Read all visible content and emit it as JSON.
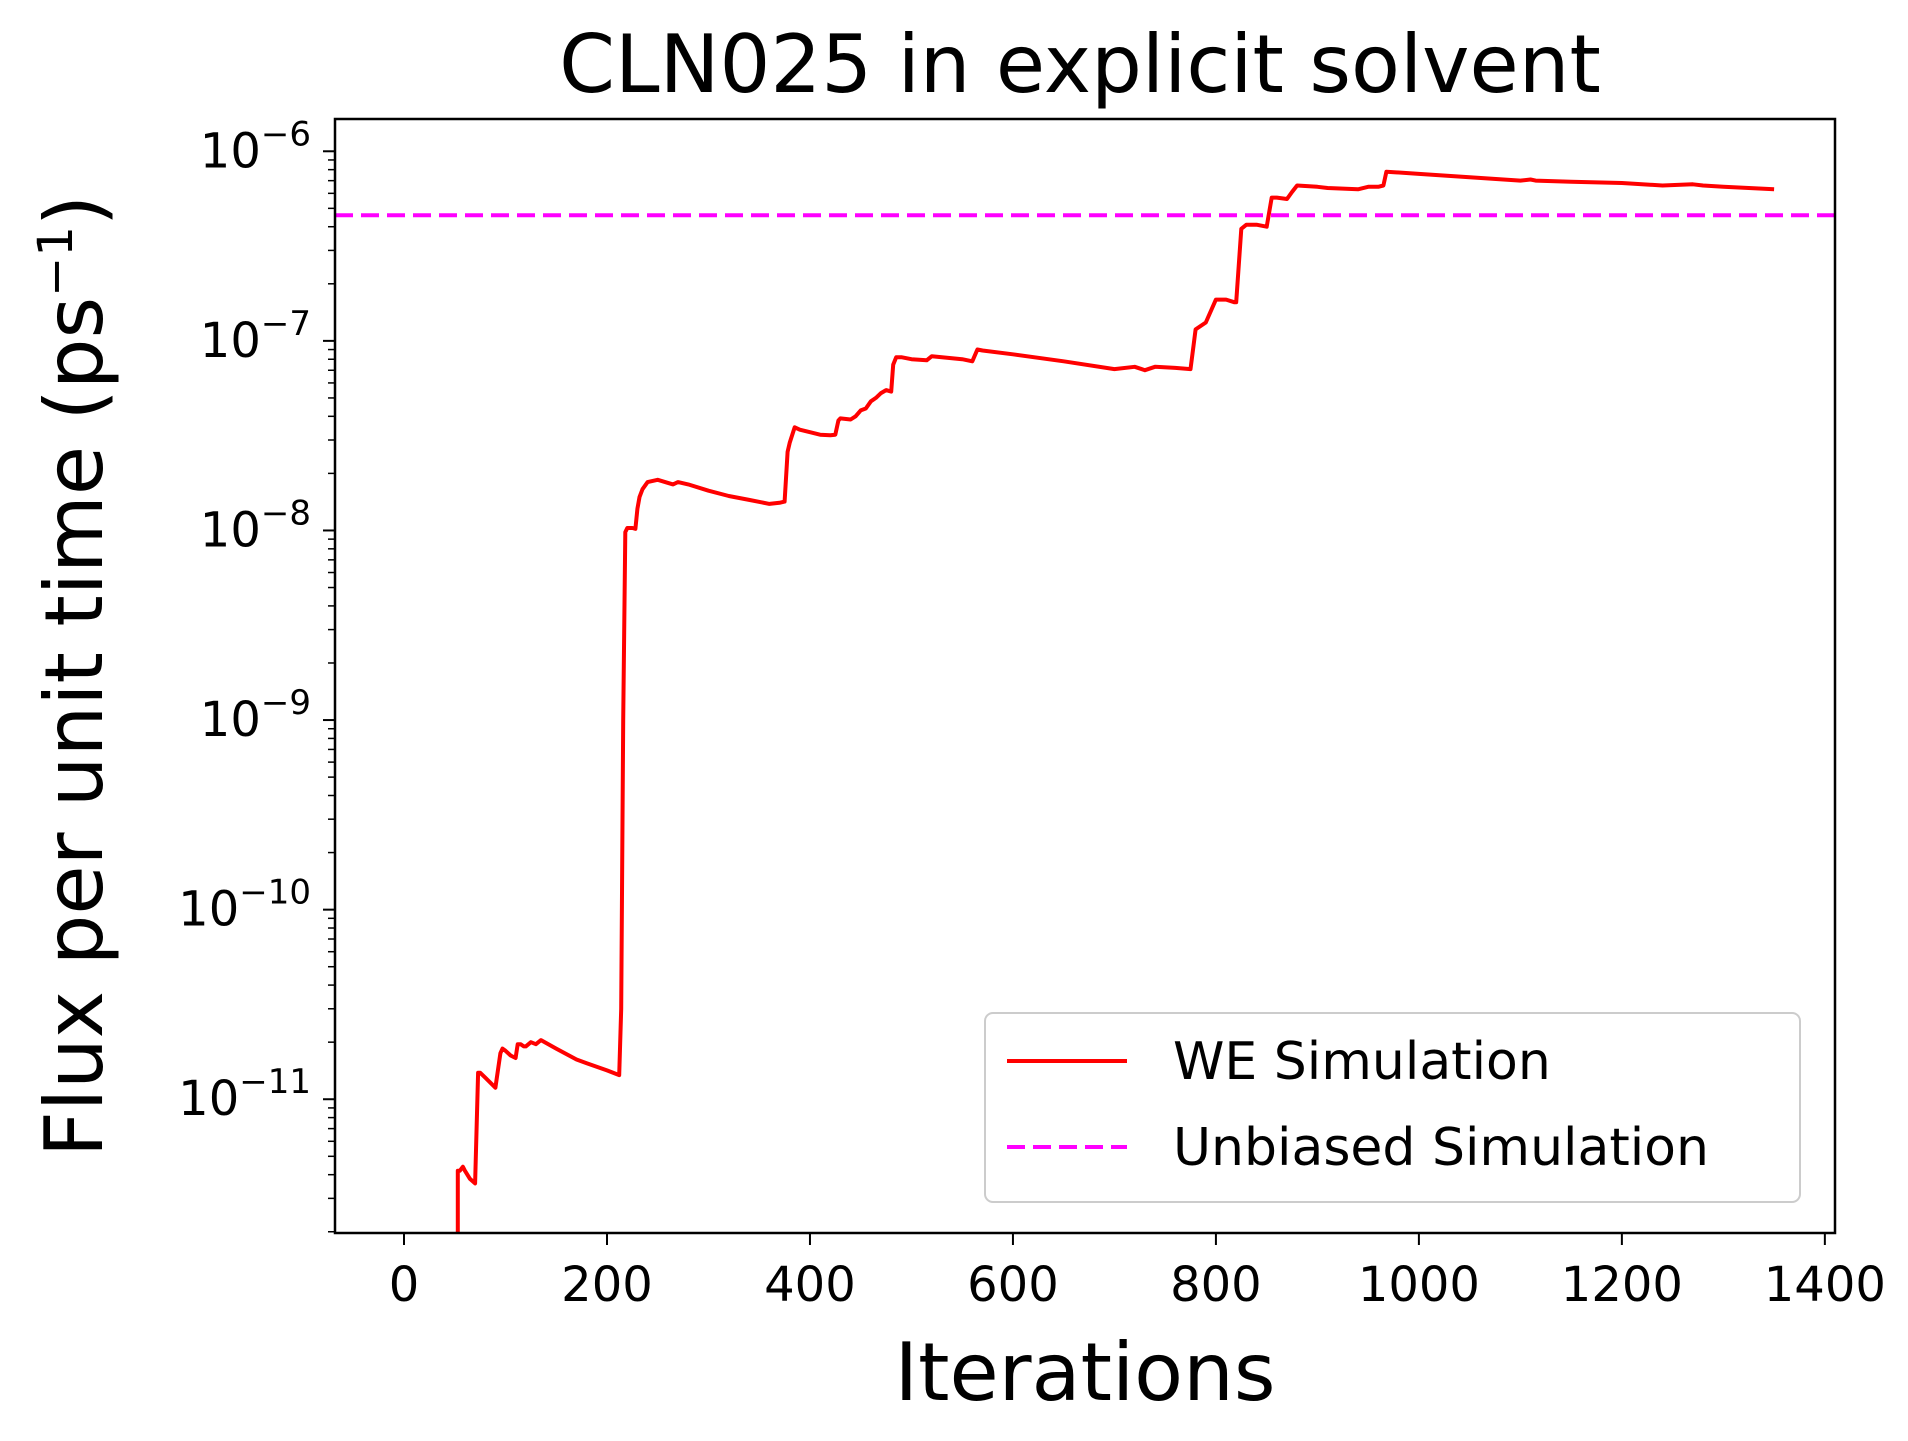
{
  "chart_data": {
    "type": "line",
    "title": "CLN025 in explicit solvent",
    "xlabel": "Iterations",
    "ylabel": "Flux per unit time (ps",
    "ylabel_sup": "−1",
    "ylabel_close": ")",
    "y_scale": "log",
    "xlim": [
      -68,
      1410
    ],
    "ylim": [
      1.97e-12,
      1.48e-06
    ],
    "xticks": [
      {
        "value": 0,
        "label": "0"
      },
      {
        "value": 200,
        "label": "200"
      },
      {
        "value": 400,
        "label": "400"
      },
      {
        "value": 600,
        "label": "600"
      },
      {
        "value": 800,
        "label": "800"
      },
      {
        "value": 1000,
        "label": "1000"
      },
      {
        "value": 1200,
        "label": "1200"
      },
      {
        "value": 1400,
        "label": "1400"
      }
    ],
    "yticks": [
      {
        "value": 1e-11,
        "base": "10",
        "exp": "−11"
      },
      {
        "value": 1e-10,
        "base": "10",
        "exp": "−10"
      },
      {
        "value": 1e-09,
        "base": "10",
        "exp": "−9"
      },
      {
        "value": 1e-08,
        "base": "10",
        "exp": "−8"
      },
      {
        "value": 1e-07,
        "base": "10",
        "exp": "−7"
      },
      {
        "value": 1e-06,
        "base": "10",
        "exp": "−6"
      }
    ],
    "grid": false,
    "legend_position": "lower-right",
    "series": [
      {
        "name": "WE Simulation",
        "color": "#ff0000",
        "style": "solid",
        "x": [
          53,
          53,
          55,
          58,
          60,
          65,
          70,
          73,
          75,
          80,
          90,
          95,
          97,
          100,
          105,
          110,
          112,
          115,
          118,
          120,
          125,
          130,
          135,
          150,
          170,
          180,
          200,
          212,
          214,
          216,
          218,
          220,
          225,
          228,
          230,
          232,
          235,
          240,
          250,
          265,
          270,
          280,
          300,
          320,
          340,
          360,
          370,
          375,
          378,
          380,
          385,
          390,
          400,
          410,
          420,
          425,
          428,
          430,
          440,
          445,
          450,
          455,
          460,
          465,
          470,
          475,
          480,
          482,
          485,
          490,
          500,
          515,
          520,
          530,
          550,
          560,
          565,
          570,
          600,
          650,
          700,
          720,
          730,
          740,
          760,
          775,
          778,
          780,
          790,
          800,
          810,
          818,
          820,
          825,
          830,
          840,
          850,
          855,
          860,
          870,
          875,
          880,
          900,
          910,
          940,
          950,
          960,
          965,
          968,
          1000,
          1050,
          1100,
          1110,
          1115,
          1150,
          1200,
          1240,
          1270,
          1280,
          1300,
          1350
        ],
        "y": [
          1.97e-12,
          4.2e-12,
          4.2e-12,
          4.4e-12,
          4.2e-12,
          3.8e-12,
          3.6e-12,
          1.38e-11,
          1.38e-11,
          1.3e-11,
          1.15e-11,
          1.75e-11,
          1.85e-11,
          1.8e-11,
          1.7e-11,
          1.65e-11,
          1.95e-11,
          1.95e-11,
          1.9e-11,
          1.9e-11,
          2e-11,
          1.95e-11,
          2.05e-11,
          1.85e-11,
          1.62e-11,
          1.55e-11,
          1.42e-11,
          1.34e-11,
          3e-11,
          1e-09,
          9.8e-09,
          1.03e-08,
          1.03e-08,
          1.02e-08,
          1.3e-08,
          1.5e-08,
          1.65e-08,
          1.8e-08,
          1.85e-08,
          1.75e-08,
          1.8e-08,
          1.75e-08,
          1.62e-08,
          1.52e-08,
          1.45e-08,
          1.38e-08,
          1.4e-08,
          1.42e-08,
          2.6e-08,
          2.9e-08,
          3.5e-08,
          3.4e-08,
          3.3e-08,
          3.2e-08,
          3.18e-08,
          3.2e-08,
          3.8e-08,
          3.9e-08,
          3.85e-08,
          4e-08,
          4.3e-08,
          4.4e-08,
          4.8e-08,
          5e-08,
          5.3e-08,
          5.5e-08,
          5.4e-08,
          7.5e-08,
          8.2e-08,
          8.2e-08,
          8e-08,
          7.9e-08,
          8.3e-08,
          8.2e-08,
          8e-08,
          7.8e-08,
          9e-08,
          8.9e-08,
          8.5e-08,
          7.8e-08,
          7.1e-08,
          7.3e-08,
          7e-08,
          7.3e-08,
          7.2e-08,
          7.1e-08,
          9.5e-08,
          1.15e-07,
          1.25e-07,
          1.65e-07,
          1.65e-07,
          1.6e-07,
          1.6e-07,
          3.9e-07,
          4.1e-07,
          4.1e-07,
          4e-07,
          5.7e-07,
          5.7e-07,
          5.6e-07,
          6.1e-07,
          6.6e-07,
          6.5e-07,
          6.4e-07,
          6.3e-07,
          6.5e-07,
          6.5e-07,
          6.6e-07,
          7.8e-07,
          7.6e-07,
          7.3e-07,
          7e-07,
          7.1e-07,
          7e-07,
          6.9e-07,
          6.8e-07,
          6.6e-07,
          6.7e-07,
          6.6e-07,
          6.5e-07,
          6.3e-07
        ]
      },
      {
        "name": "Unbiased Simulation",
        "color": "#ff00ff",
        "style": "dashed",
        "constant": 4.6e-07
      }
    ]
  }
}
